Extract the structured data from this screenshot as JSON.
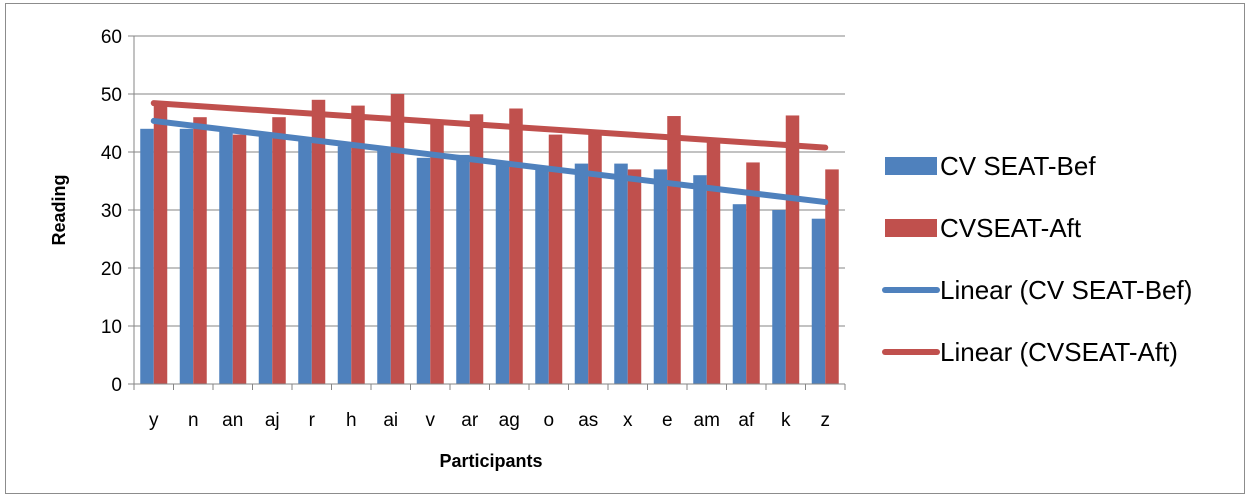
{
  "chart_data": {
    "type": "bar",
    "xlabel": "Participants",
    "ylabel": "Reading",
    "ylim": [
      0,
      60
    ],
    "yticks": [
      0,
      10,
      20,
      30,
      40,
      50,
      60
    ],
    "grid": "horizontal",
    "legend_position": "right",
    "categories": [
      "y",
      "n",
      "an",
      "aj",
      "r",
      "h",
      "ai",
      "v",
      "ar",
      "ag",
      "o",
      "as",
      "x",
      "e",
      "am",
      "af",
      "k",
      "z"
    ],
    "series": [
      {
        "name": "CV SEAT-Bef",
        "color": "#4f81bd",
        "values": [
          44,
          44,
          43.5,
          43,
          42,
          41,
          40.5,
          39,
          39.5,
          38,
          37.5,
          38,
          38,
          37,
          36,
          31,
          30,
          28.5
        ]
      },
      {
        "name": "CVSEAT-Aft",
        "color": "#c0504d",
        "values": [
          48.5,
          46,
          43,
          46,
          49,
          48,
          50,
          45,
          46.5,
          47.5,
          43,
          43.5,
          37,
          46.2,
          42,
          38.2,
          46.3,
          37
        ]
      }
    ],
    "trendlines": [
      {
        "name": "Linear (CV SEAT-Bef)",
        "series": 0,
        "color": "#4f81bd"
      },
      {
        "name": "Linear (CVSEAT-Aft)",
        "series": 1,
        "color": "#c0504d"
      }
    ]
  }
}
